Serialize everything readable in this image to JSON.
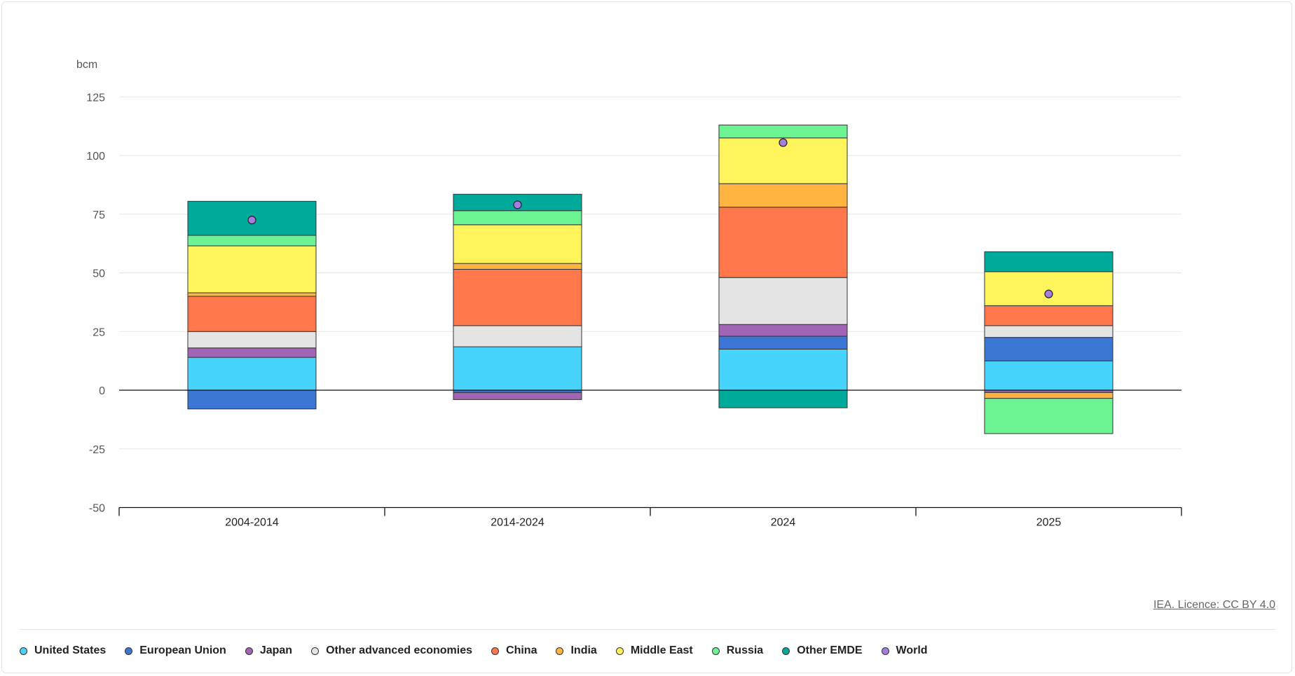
{
  "credit": "IEA. Licence: CC BY 4.0",
  "chart_data": {
    "type": "bar",
    "stacked": true,
    "ylabel": "bcm",
    "ylim": [
      -50,
      125
    ],
    "yticks": [
      125,
      100,
      75,
      50,
      25,
      0,
      -25,
      -50
    ],
    "grid": true,
    "legend_position": "bottom",
    "categories": [
      "2004-2014",
      "2014-2024",
      "2024",
      "2025"
    ],
    "series": [
      {
        "name": "United States",
        "color": "#47d4fc",
        "values": [
          14,
          18.5,
          17.5,
          12.5
        ]
      },
      {
        "name": "European Union",
        "color": "#3b76d4",
        "values": [
          -8,
          -1,
          5.5,
          10
        ]
      },
      {
        "name": "Japan",
        "color": "#a265b5",
        "values": [
          4,
          -3,
          5,
          -1
        ]
      },
      {
        "name": "Other advanced economies",
        "color": "#e4e4e4",
        "values": [
          7,
          9,
          20,
          5
        ]
      },
      {
        "name": "China",
        "color": "#ff774a",
        "values": [
          15,
          24,
          30,
          8.5
        ]
      },
      {
        "name": "India",
        "color": "#ffb340",
        "values": [
          1.5,
          2.5,
          10,
          -2.5
        ]
      },
      {
        "name": "Middle East",
        "color": "#fff45c",
        "values": [
          20,
          16.5,
          19.5,
          14.5
        ]
      },
      {
        "name": "Russia",
        "color": "#6cf392",
        "values": [
          4.5,
          6,
          5.5,
          -15
        ]
      },
      {
        "name": "Other EMDE",
        "color": "#00aa9a",
        "values": [
          14.5,
          7,
          -7.5,
          8.5
        ]
      }
    ],
    "world": {
      "name": "World",
      "color": "#a67ce0",
      "values": [
        72.5,
        79,
        105.5,
        41
      ]
    }
  }
}
